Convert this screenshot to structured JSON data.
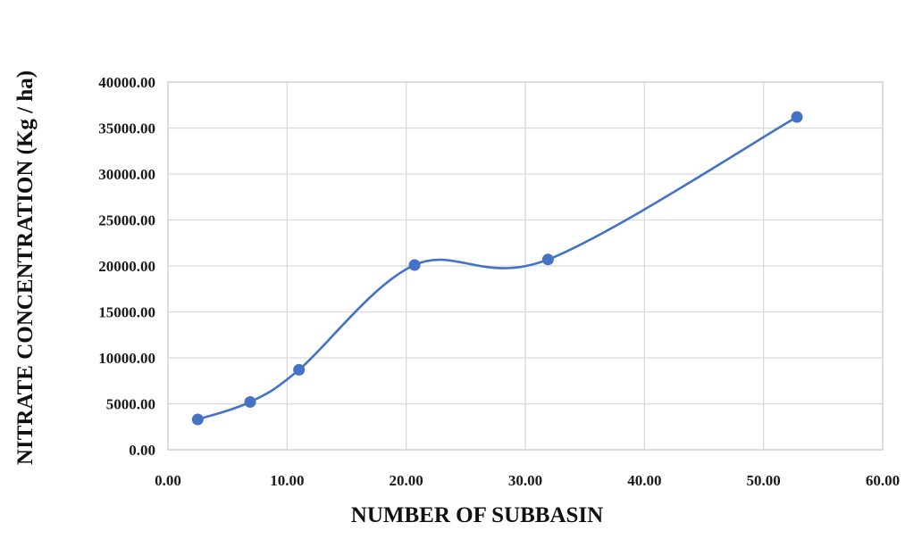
{
  "chart_data": {
    "type": "scatter",
    "title": "",
    "xlabel": "NUMBER OF SUBBASIN",
    "ylabel": "NITRATE CONCENTRATION (Kg / ha)",
    "xlim": [
      0,
      60
    ],
    "ylim": [
      0,
      40000
    ],
    "x_tick_labels": [
      "0.00",
      "10.00",
      "20.00",
      "30.00",
      "40.00",
      "50.00",
      "60.00"
    ],
    "y_tick_labels": [
      "0.00",
      "5000.00",
      "10000.00",
      "15000.00",
      "20000.00",
      "25000.00",
      "30000.00",
      "35000.00",
      "40000.00"
    ],
    "grid": true,
    "line_style": "smoothed",
    "series": [
      {
        "x": [
          2.5,
          6.9,
          11.0,
          20.7,
          31.9,
          52.8
        ],
        "y": [
          3300,
          5200,
          8700,
          20100,
          20700,
          36200
        ]
      }
    ],
    "colors": {
      "series": "#4472c4",
      "grid": "#d9d9d9"
    }
  }
}
